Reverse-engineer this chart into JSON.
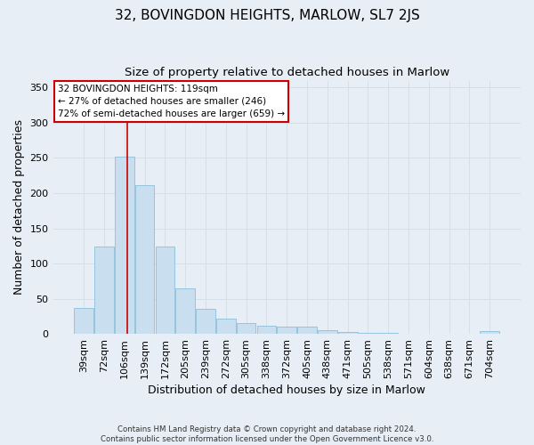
{
  "title": "32, BOVINGDON HEIGHTS, MARLOW, SL7 2JS",
  "subtitle": "Size of property relative to detached houses in Marlow",
  "xlabel": "Distribution of detached houses by size in Marlow",
  "ylabel": "Number of detached properties",
  "bar_labels": [
    "39sqm",
    "72sqm",
    "106sqm",
    "139sqm",
    "172sqm",
    "205sqm",
    "239sqm",
    "272sqm",
    "305sqm",
    "338sqm",
    "372sqm",
    "405sqm",
    "438sqm",
    "471sqm",
    "505sqm",
    "538sqm",
    "571sqm",
    "604sqm",
    "638sqm",
    "671sqm",
    "704sqm"
  ],
  "bar_values": [
    37,
    124,
    252,
    211,
    124,
    65,
    35,
    21,
    15,
    11,
    10,
    10,
    5,
    2,
    1,
    1,
    0,
    0,
    0,
    0,
    4
  ],
  "bar_color": "#c9dff0",
  "bar_edge_color": "#8bbfda",
  "grid_color": "#d5dfe8",
  "bg_color": "#e8eef5",
  "ax_bg_color": "#e8eef5",
  "annotation_text": "32 BOVINGDON HEIGHTS: 119sqm\n← 27% of detached houses are smaller (246)\n72% of semi-detached houses are larger (659) →",
  "annotation_box_color": "#ffffff",
  "annotation_border_color": "#cc0000",
  "red_line_x": 2.12,
  "ylim": [
    0,
    360
  ],
  "yticks": [
    0,
    50,
    100,
    150,
    200,
    250,
    300,
    350
  ],
  "footer": "Contains HM Land Registry data © Crown copyright and database right 2024.\nContains public sector information licensed under the Open Government Licence v3.0.",
  "title_fontsize": 11,
  "subtitle_fontsize": 9.5,
  "xlabel_fontsize": 9,
  "ylabel_fontsize": 9,
  "tick_fontsize": 8,
  "annotation_fontsize": 7.5
}
